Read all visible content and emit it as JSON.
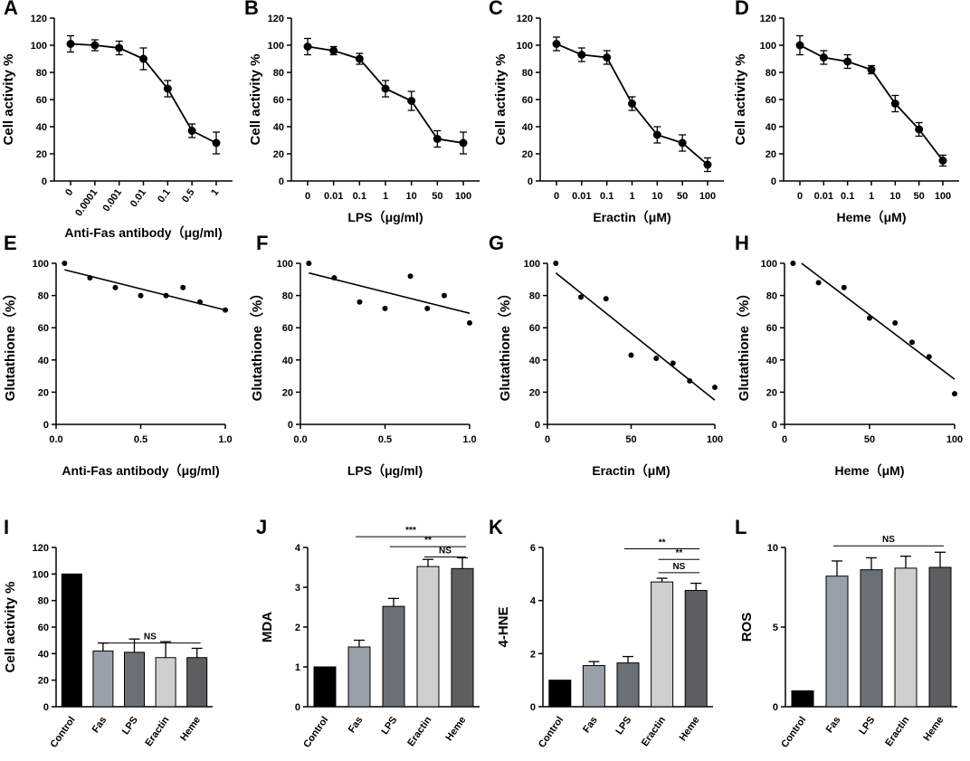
{
  "chart_data": [
    {
      "id": "A",
      "type": "line",
      "ylabel": "Cell activity %",
      "xlabel": "Anti-Fas antibody（μg/ml)",
      "categories": [
        "0",
        "0.0001",
        "0.001",
        "0.01",
        "0.1",
        "0.5",
        "1"
      ],
      "values": [
        101,
        100,
        98,
        90,
        68,
        37,
        28
      ],
      "errors": [
        6,
        4,
        5,
        8,
        6,
        5,
        8
      ],
      "ylim": [
        0,
        120
      ],
      "yticks": [
        "0",
        "20",
        "40",
        "60",
        "80",
        "100",
        "120"
      ]
    },
    {
      "id": "B",
      "type": "line",
      "ylabel": "Cell activity %",
      "xlabel": "LPS（μg/ml)",
      "categories": [
        "0",
        "0.01",
        "0.1",
        "1",
        "10",
        "50",
        "100"
      ],
      "values": [
        99,
        96,
        90,
        68,
        59,
        31,
        28
      ],
      "errors": [
        6,
        3,
        4,
        6,
        7,
        6,
        8
      ],
      "ylim": [
        0,
        120
      ],
      "yticks": [
        "0",
        "20",
        "40",
        "60",
        "80",
        "100",
        "120"
      ]
    },
    {
      "id": "C",
      "type": "line",
      "ylabel": "Cell activity %",
      "xlabel": "Eractin（μM)",
      "categories": [
        "0",
        "0.01",
        "0.1",
        "1",
        "10",
        "50",
        "100"
      ],
      "values": [
        101,
        93,
        91,
        57,
        34,
        28,
        12
      ],
      "errors": [
        5,
        5,
        5,
        5,
        6,
        6,
        5
      ],
      "ylim": [
        0,
        120
      ],
      "yticks": [
        "0",
        "20",
        "40",
        "60",
        "80",
        "100",
        "120"
      ]
    },
    {
      "id": "D",
      "type": "line",
      "ylabel": "Cell activity %",
      "xlabel": "Heme（μM)",
      "categories": [
        "0",
        "0.01",
        "0.1",
        "1",
        "10",
        "50",
        "100"
      ],
      "values": [
        100,
        91,
        88,
        82,
        57,
        38,
        15
      ],
      "errors": [
        7,
        5,
        5,
        3,
        6,
        5,
        4
      ],
      "ylim": [
        0,
        120
      ],
      "yticks": [
        "0",
        "20",
        "40",
        "60",
        "80",
        "100",
        "120"
      ]
    },
    {
      "id": "E",
      "type": "scatter",
      "ylabel": "Glutathione（%）",
      "xlabel": "Anti-Fas antibody（μg/ml)",
      "x": [
        0.05,
        0.2,
        0.35,
        0.5,
        0.65,
        0.75,
        0.85,
        1.0
      ],
      "y": [
        100,
        91,
        85,
        80,
        80,
        85,
        76,
        71
      ],
      "fit": [
        [
          0.05,
          96
        ],
        [
          1.0,
          71
        ]
      ],
      "xlim": [
        0,
        1
      ],
      "ylim": [
        0,
        100
      ],
      "xticks": [
        "0.0",
        "0.5",
        "1.0"
      ],
      "yticks": [
        "0",
        "20",
        "40",
        "60",
        "80",
        "100"
      ]
    },
    {
      "id": "F",
      "type": "scatter",
      "ylabel": "Glutathione（%）",
      "xlabel": "LPS（μg/ml)",
      "x": [
        0.05,
        0.2,
        0.35,
        0.5,
        0.65,
        0.75,
        0.85,
        1.0
      ],
      "y": [
        100,
        91,
        76,
        72,
        92,
        72,
        80,
        63
      ],
      "fit": [
        [
          0.05,
          94
        ],
        [
          1.0,
          69
        ]
      ],
      "xlim": [
        0,
        1
      ],
      "ylim": [
        0,
        100
      ],
      "xticks": [
        "0.0",
        "0.5",
        "1.0"
      ],
      "yticks": [
        "0",
        "20",
        "40",
        "60",
        "80",
        "100"
      ]
    },
    {
      "id": "G",
      "type": "scatter",
      "ylabel": "Glutathione（%）",
      "xlabel": "Eractin（μM)",
      "x": [
        5,
        20,
        35,
        50,
        65,
        75,
        85,
        100
      ],
      "y": [
        100,
        79,
        78,
        43,
        41,
        38,
        27,
        23
      ],
      "fit": [
        [
          5,
          94
        ],
        [
          100,
          15
        ]
      ],
      "xlim": [
        0,
        100
      ],
      "ylim": [
        0,
        100
      ],
      "xticks": [
        "0",
        "50",
        "100"
      ],
      "yticks": [
        "0",
        "20",
        "40",
        "60",
        "80",
        "100"
      ]
    },
    {
      "id": "H",
      "type": "scatter",
      "ylabel": "Glutathione（%）",
      "xlabel": "Heme（μM)",
      "x": [
        5,
        20,
        35,
        50,
        65,
        75,
        85,
        100
      ],
      "y": [
        100,
        88,
        85,
        66,
        63,
        51,
        42,
        19
      ],
      "fit": [
        [
          10,
          100
        ],
        [
          100,
          28
        ]
      ],
      "xlim": [
        0,
        100
      ],
      "ylim": [
        0,
        100
      ],
      "xticks": [
        "0",
        "50",
        "100"
      ],
      "yticks": [
        "0",
        "20",
        "40",
        "60",
        "80",
        "100"
      ]
    },
    {
      "id": "I",
      "type": "bar",
      "ylabel": "Cell activity %",
      "xlabel": "",
      "categories": [
        "Control",
        "Fas",
        "LPS",
        "Eractin",
        "Heme"
      ],
      "values": [
        100,
        42,
        41,
        37,
        37
      ],
      "errors": [
        0,
        6,
        10,
        12,
        7
      ],
      "ylim": [
        0,
        120
      ],
      "yticks": [
        "0",
        "20",
        "40",
        "60",
        "80",
        "100",
        "120"
      ],
      "sig": [
        {
          "from": 1,
          "to": 4,
          "text": "NS",
          "y": 48
        }
      ]
    },
    {
      "id": "J",
      "type": "bar",
      "ylabel": "MDA",
      "xlabel": "",
      "categories": [
        "Control",
        "Fas",
        "LPS",
        "Eractin",
        "Heme"
      ],
      "values": [
        1.0,
        1.5,
        2.52,
        3.52,
        3.47
      ],
      "errors": [
        0,
        0.17,
        0.2,
        0.18,
        0.27
      ],
      "ylim": [
        0,
        4
      ],
      "yticks": [
        "0",
        "1",
        "2",
        "3",
        "4"
      ],
      "sig": [
        {
          "from": 1,
          "to": 4,
          "text": "***",
          "y": 4.27
        },
        {
          "from": 2,
          "to": 4,
          "text": "**",
          "y": 4.02
        },
        {
          "from": 3,
          "to": 4,
          "text": "NS",
          "y": 3.76
        }
      ]
    },
    {
      "id": "K",
      "type": "bar",
      "ylabel": "4-HNE",
      "xlabel": "",
      "categories": [
        "Control",
        "Fas",
        "LPS",
        "Eractin",
        "Heme"
      ],
      "values": [
        1.0,
        1.55,
        1.65,
        4.7,
        4.38
      ],
      "errors": [
        0,
        0.15,
        0.24,
        0.14,
        0.27
      ],
      "ylim": [
        0,
        6
      ],
      "yticks": [
        "0",
        "2",
        "4",
        "6"
      ],
      "sig": [
        {
          "from": 2,
          "to": 4,
          "text": "**",
          "y": 5.95
        },
        {
          "from": 3,
          "to": 4,
          "text": "**",
          "y": 5.55
        },
        {
          "from": 3,
          "to": 4,
          "text": "NS",
          "y": 5.05
        }
      ]
    },
    {
      "id": "L",
      "type": "bar",
      "ylabel": "ROS",
      "xlabel": "",
      "categories": [
        "Control",
        "Fas",
        "LPS",
        "Eractin",
        "Heme"
      ],
      "values": [
        1.0,
        8.2,
        8.6,
        8.7,
        8.75
      ],
      "errors": [
        0,
        0.95,
        0.75,
        0.75,
        0.95
      ],
      "ylim": [
        0,
        10
      ],
      "yticks": [
        "0",
        "5",
        "10"
      ],
      "sig": [
        {
          "from": 1,
          "to": 4,
          "text": "NS",
          "y": 10.1
        }
      ]
    }
  ]
}
